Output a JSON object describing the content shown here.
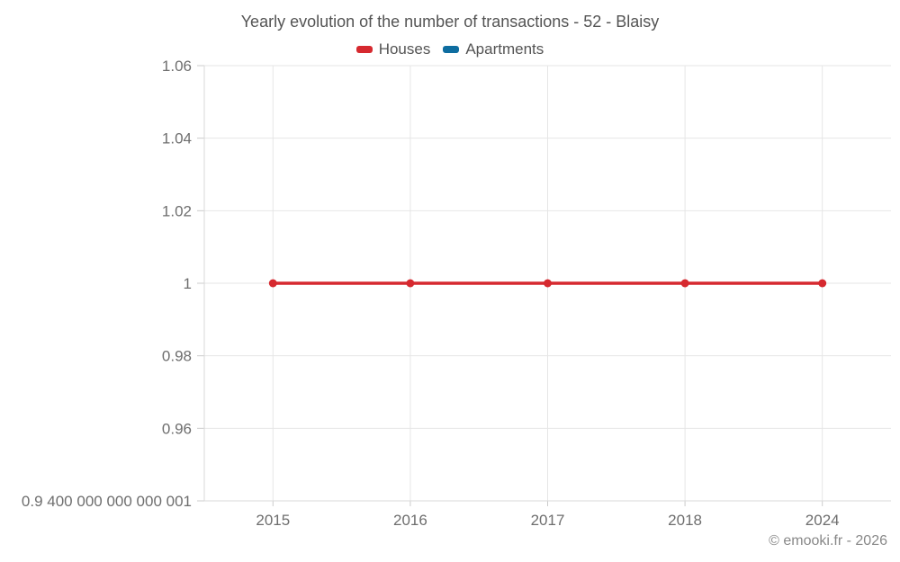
{
  "title": "Yearly evolution of the number of transactions - 52 - Blaisy",
  "legend": {
    "items": [
      {
        "label": "Houses",
        "color": "#d6292f"
      },
      {
        "label": "Apartments",
        "color": "#0e6da0"
      }
    ]
  },
  "attribution": "© emooki.fr - 2026",
  "colors": {
    "grid": "#e6e6e6",
    "axis": "#d9d9d9",
    "tick": "#cccccc",
    "tick_label": "#6e6e6e",
    "title_text": "#545454"
  },
  "chart_data": {
    "type": "line",
    "title": "Yearly evolution of the number of transactions - 52 - Blaisy",
    "categories": [
      "2015",
      "2016",
      "2017",
      "2018",
      "2024"
    ],
    "series": [
      {
        "name": "Houses",
        "color": "#d6292f",
        "marker": "circle",
        "values": [
          1,
          1,
          1,
          1,
          1
        ]
      },
      {
        "name": "Apartments",
        "color": "#0e6da0",
        "marker": "circle",
        "values": []
      }
    ],
    "xlabel": "",
    "ylabel": "",
    "ylim": [
      0.94,
      1.06
    ],
    "grid": true,
    "legend_position": "top",
    "y_ticks": [
      {
        "value": 1.06,
        "label": "1.06"
      },
      {
        "value": 1.04,
        "label": "1.04"
      },
      {
        "value": 1.02,
        "label": "1.02"
      },
      {
        "value": 1.0,
        "label": "1"
      },
      {
        "value": 0.98,
        "label": "0.98"
      },
      {
        "value": 0.96,
        "label": "0.96"
      },
      {
        "value": 0.94,
        "label": "0.9 400 000 000 000 001"
      }
    ]
  }
}
